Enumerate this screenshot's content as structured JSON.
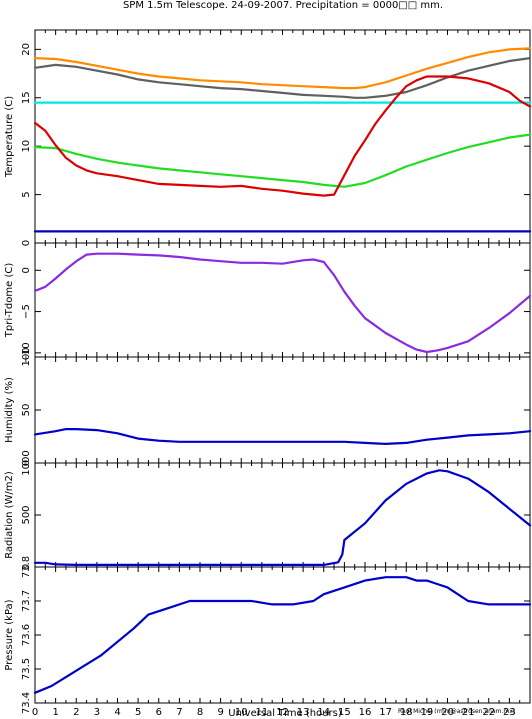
{
  "title": "SPM 1.5m Telescope. 24-09-2007. Precipitation = 0000□□ mm.",
  "credit": "Raul Michel (rmm@astrosen.unam.mx)",
  "chart_data": {
    "type": "line",
    "xlabel": "Universal Time (hours)",
    "xlim": [
      0,
      24
    ],
    "xticks": [
      "0",
      "1",
      "2",
      "3",
      "4",
      "5",
      "6",
      "7",
      "8",
      "9",
      "10",
      "11",
      "12",
      "13",
      "14",
      "15",
      "16",
      "17",
      "18",
      "19",
      "20",
      "21",
      "22",
      "23"
    ],
    "panels": [
      {
        "ylabel": "Temperature (C)",
        "ylim": [
          0,
          22
        ],
        "yticks": [
          {
            "v": 0,
            "label": "0"
          },
          {
            "v": 5,
            "label": "5"
          },
          {
            "v": 10,
            "label": "10"
          },
          {
            "v": 15,
            "label": "15"
          },
          {
            "v": 20,
            "label": "20"
          }
        ],
        "series": [
          {
            "color": "#ff8c00",
            "x": [
              0,
              1,
              2,
              3,
              4,
              5,
              6,
              7,
              8,
              9,
              10,
              11,
              12,
              13,
              14,
              15,
              15.5,
              16,
              17,
              18,
              19,
              20,
              21,
              22,
              23,
              24
            ],
            "y": [
              19.1,
              19.0,
              18.7,
              18.3,
              17.9,
              17.5,
              17.2,
              17.0,
              16.8,
              16.7,
              16.6,
              16.4,
              16.3,
              16.2,
              16.1,
              16.0,
              16.0,
              16.1,
              16.6,
              17.3,
              18.0,
              18.6,
              19.2,
              19.7,
              20.0,
              20.1
            ]
          },
          {
            "color": "#606060",
            "x": [
              0,
              1,
              2,
              3,
              4,
              5,
              6,
              7,
              8,
              9,
              10,
              11,
              12,
              13,
              14,
              15,
              15.5,
              16,
              17,
              18,
              19,
              20,
              21,
              22,
              23,
              24
            ],
            "y": [
              18.1,
              18.4,
              18.2,
              17.8,
              17.4,
              16.9,
              16.6,
              16.4,
              16.2,
              16.0,
              15.9,
              15.7,
              15.5,
              15.3,
              15.2,
              15.1,
              15.0,
              15.0,
              15.2,
              15.6,
              16.3,
              17.1,
              17.8,
              18.3,
              18.8,
              19.1
            ]
          },
          {
            "color": "#00e5e5",
            "x": [
              0,
              24
            ],
            "y": [
              14.5,
              14.5
            ]
          },
          {
            "color": "#22dd22",
            "x": [
              0,
              1,
              2,
              3,
              4,
              5,
              6,
              7,
              8,
              9,
              10,
              11,
              12,
              13,
              14,
              15,
              16,
              17,
              18,
              19,
              20,
              21,
              22,
              23,
              24
            ],
            "y": [
              9.9,
              9.8,
              9.2,
              8.7,
              8.3,
              8.0,
              7.7,
              7.5,
              7.3,
              7.1,
              6.9,
              6.7,
              6.5,
              6.3,
              6.0,
              5.8,
              6.2,
              7.0,
              7.9,
              8.6,
              9.3,
              9.9,
              10.4,
              10.9,
              11.2
            ]
          },
          {
            "color": "#dd0000",
            "x": [
              0,
              0.5,
              1,
              1.5,
              2,
              2.5,
              3,
              4,
              5,
              6,
              7,
              8,
              9,
              10,
              11,
              12,
              13,
              14,
              14.5,
              15,
              15.5,
              16,
              16.5,
              17,
              17.5,
              18,
              18.5,
              19,
              20,
              21,
              22,
              23,
              23.5,
              24
            ],
            "y": [
              12.4,
              11.6,
              10.1,
              8.8,
              8.0,
              7.5,
              7.2,
              6.9,
              6.5,
              6.1,
              6.0,
              5.9,
              5.8,
              5.9,
              5.6,
              5.4,
              5.1,
              4.9,
              5.0,
              7.0,
              9.0,
              10.6,
              12.3,
              13.7,
              15.0,
              16.2,
              16.8,
              17.2,
              17.2,
              17.0,
              16.5,
              15.6,
              14.7,
              14.1
            ]
          },
          {
            "color": "#0000bb",
            "x": [
              0,
              24
            ],
            "y": [
              1.2,
              1.2
            ]
          }
        ]
      },
      {
        "ylabel": "Tpri-Tdome (C)",
        "ylim": [
          -10.5,
          3.3
        ],
        "yticks": [
          {
            "v": 0,
            "label": "0"
          },
          {
            "v": -5,
            "label": "−5"
          },
          {
            "v": -10,
            "label": "−10"
          }
        ],
        "series": [
          {
            "color": "#8a2be2",
            "x": [
              0,
              0.5,
              1,
              1.5,
              2,
              2.5,
              3,
              4,
              5,
              6,
              7,
              8,
              9,
              10,
              11,
              12,
              13,
              13.5,
              14,
              14.5,
              15,
              15.5,
              16,
              17,
              18,
              18.5,
              19,
              19.5,
              20,
              21,
              22,
              23,
              24
            ],
            "y": [
              -2.5,
              -2.0,
              -1.0,
              0.1,
              1.1,
              1.9,
              2.0,
              2.0,
              1.9,
              1.8,
              1.6,
              1.3,
              1.1,
              0.9,
              0.9,
              0.8,
              1.2,
              1.3,
              1.0,
              -0.6,
              -2.6,
              -4.3,
              -5.8,
              -7.6,
              -9.0,
              -9.6,
              -9.9,
              -9.7,
              -9.4,
              -8.6,
              -7.0,
              -5.2,
              -3.1
            ]
          }
        ]
      },
      {
        "ylabel": "Humidity (%)",
        "ylim": [
          0,
          100
        ],
        "yticks": [
          {
            "v": 100,
            "label": "100"
          },
          {
            "v": 50,
            "label": "50"
          },
          {
            "v": 0,
            "label": "0"
          }
        ],
        "series": [
          {
            "color": "#0000cc",
            "x": [
              0,
              1,
              1.5,
              2,
              3,
              4,
              5,
              6,
              7,
              8,
              9,
              10,
              11,
              12,
              13,
              14,
              15,
              16,
              17,
              18,
              19,
              20,
              21,
              22,
              23,
              24
            ],
            "y": [
              27,
              30,
              32,
              32,
              31,
              28,
              23,
              21,
              20,
              20,
              20,
              20,
              20,
              20,
              20,
              20,
              20,
              19,
              18,
              19,
              22,
              24,
              26,
              27,
              28,
              30
            ]
          }
        ]
      },
      {
        "ylabel": "Radiation (W/m2)",
        "ylim": [
          0,
          1000
        ],
        "yticks": [
          {
            "v": 1000,
            "label": "1000"
          },
          {
            "v": 500,
            "label": "500"
          },
          {
            "v": 0,
            "label": "0"
          }
        ],
        "series": [
          {
            "color": "#0000cc",
            "x": [
              0,
              0.5,
              1,
              2,
              3,
              4,
              5,
              6,
              7,
              8,
              9,
              10,
              11,
              12,
              13,
              14,
              14.7,
              14.9,
              15,
              16,
              17,
              18,
              19,
              19.6,
              20,
              21,
              22,
              23,
              24
            ],
            "y": [
              40,
              40,
              25,
              20,
              20,
              20,
              20,
              20,
              20,
              20,
              20,
              20,
              20,
              20,
              20,
              20,
              45,
              120,
              260,
              420,
              640,
              800,
              900,
              930,
              920,
              850,
              720,
              560,
              400
            ]
          }
        ]
      },
      {
        "ylabel": "Pressure (kPa)",
        "ylim": [
          73.4,
          73.8
        ],
        "yticks": [
          {
            "v": 73.4,
            "label": "73.4"
          },
          {
            "v": 73.5,
            "label": "73.5"
          },
          {
            "v": 73.6,
            "label": "73.6"
          },
          {
            "v": 73.7,
            "label": "73.7"
          },
          {
            "v": 73.8,
            "label": "73.8"
          }
        ],
        "series": [
          {
            "color": "#0000cc",
            "x": [
              0,
              0.8,
              1.6,
              2.4,
              3.2,
              4.0,
              4.8,
              5.5,
              6.5,
              7.5,
              8.5,
              9.5,
              10.5,
              11.5,
              12.5,
              13.5,
              14.0,
              15.0,
              16.0,
              17.0,
              17.5,
              18.0,
              18.5,
              19.0,
              19.5,
              20.0,
              20.5,
              21.0,
              22.0,
              23.0,
              24.0
            ],
            "y": [
              73.43,
              73.45,
              73.48,
              73.51,
              73.54,
              73.58,
              73.62,
              73.66,
              73.68,
              73.7,
              73.7,
              73.7,
              73.7,
              73.69,
              73.69,
              73.7,
              73.72,
              73.74,
              73.76,
              73.77,
              73.77,
              73.77,
              73.76,
              73.76,
              73.75,
              73.74,
              73.72,
              73.7,
              73.69,
              73.69,
              73.69
            ]
          }
        ]
      }
    ]
  }
}
